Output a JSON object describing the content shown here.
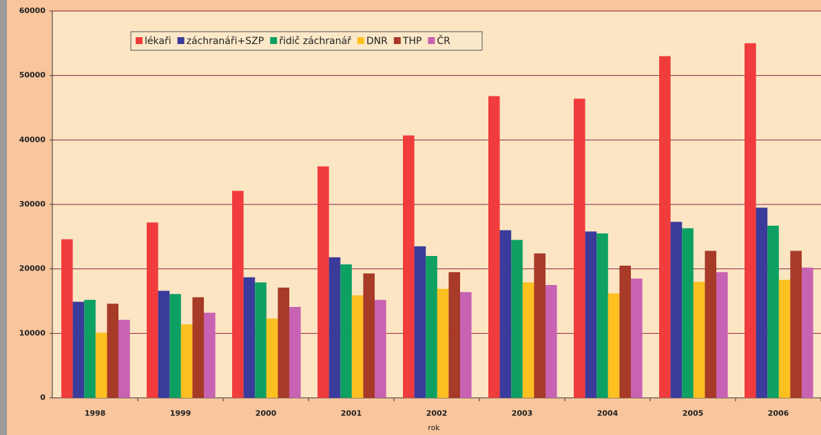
{
  "chart_data": {
    "type": "bar",
    "x_label": "rok",
    "categories": [
      "1998",
      "1999",
      "2000",
      "2001",
      "2002",
      "2003",
      "2004",
      "2005",
      "2006"
    ],
    "series": [
      {
        "name": "lékaři",
        "color": "#f03c3c",
        "values": [
          24600,
          27200,
          32100,
          35900,
          40700,
          46800,
          46400,
          53000,
          55000
        ]
      },
      {
        "name": "záchranáři+SZP",
        "color": "#3b3b9c",
        "values": [
          14900,
          16600,
          18700,
          21800,
          23500,
          26000,
          25800,
          27300,
          29500
        ]
      },
      {
        "name": "řidič záchranář",
        "color": "#0da062",
        "values": [
          15200,
          16100,
          17900,
          20700,
          22000,
          24500,
          25500,
          26300,
          26700
        ]
      },
      {
        "name": "DNR",
        "color": "#fcc020",
        "values": [
          10100,
          11400,
          12300,
          15900,
          16900,
          17900,
          16200,
          18000,
          18300
        ]
      },
      {
        "name": "THP",
        "color": "#a83a28",
        "values": [
          14600,
          15600,
          17100,
          19300,
          19500,
          22400,
          20500,
          22800,
          22800
        ]
      },
      {
        "name": "ČR",
        "color": "#c862b2",
        "values": [
          12100,
          13200,
          14100,
          15200,
          16400,
          17500,
          18500,
          19500,
          20200
        ]
      }
    ],
    "ylim": [
      0,
      60000
    ],
    "yticks": [
      0,
      10000,
      20000,
      30000,
      40000,
      50000,
      60000
    ],
    "grid": true,
    "legend": "top-left"
  }
}
